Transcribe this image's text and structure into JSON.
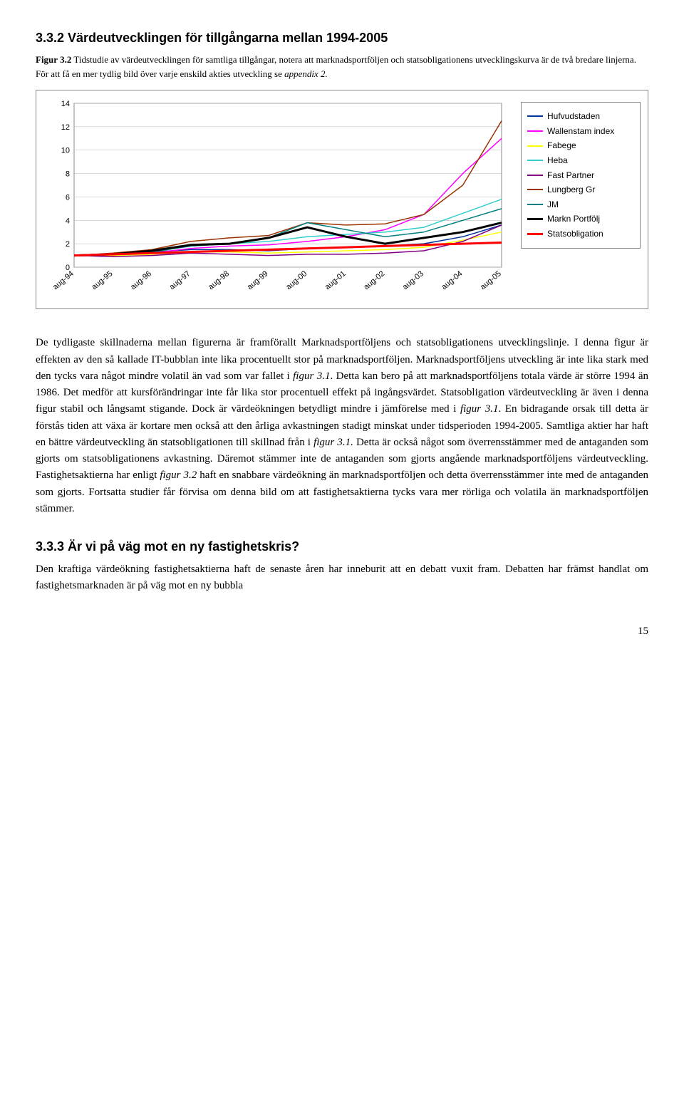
{
  "section_heading": "3.3.2 Värdeutvecklingen för tillgångarna mellan 1994-2005",
  "figcaption_bold": "Figur 3.2",
  "figcaption_rest": " Tidstudie av värdeutvecklingen för samtliga tillgångar, notera att marknadsportföljen och statsobligationens utvecklingskurva är de två bredare linjerna. För att få en mer tydlig bild över varje enskild akties utveckling se ",
  "figcaption_ital": "appendix 2.",
  "chart": {
    "type": "line",
    "ylim": [
      0,
      14
    ],
    "ytick_step": 2,
    "yticks": [
      0,
      2,
      4,
      6,
      8,
      10,
      12,
      14
    ],
    "xlabels": [
      "aug-94",
      "aug-95",
      "aug-96",
      "aug-97",
      "aug-98",
      "aug-99",
      "aug-00",
      "aug-01",
      "aug-02",
      "aug-03",
      "aug-04",
      "aug-05"
    ],
    "label_fontsize": 11,
    "tick_fontfamily": "Arial",
    "background_color": "#ffffff",
    "plot_border_color": "#888888",
    "grid_color": "#bfbfbf",
    "series": [
      {
        "name": "Hufvudstaden",
        "color": "#003399",
        "width": 1.5,
        "values": [
          1.0,
          1.1,
          1.3,
          1.5,
          1.5,
          1.4,
          1.6,
          1.7,
          1.8,
          2.0,
          2.6,
          3.6
        ]
      },
      {
        "name": "Wallenstam index",
        "color": "#ff00ff",
        "width": 1.5,
        "values": [
          1.0,
          1.0,
          1.2,
          1.6,
          1.8,
          1.9,
          2.2,
          2.6,
          3.2,
          4.5,
          8.0,
          11.0
        ]
      },
      {
        "name": "Fabege",
        "color": "#ffff00",
        "width": 1.5,
        "values": [
          1.0,
          1.0,
          1.1,
          1.3,
          1.3,
          1.2,
          1.3,
          1.4,
          1.5,
          1.7,
          2.3,
          3.0
        ]
      },
      {
        "name": "Heba",
        "color": "#33cccc",
        "width": 1.5,
        "values": [
          1.0,
          1.1,
          1.3,
          1.8,
          2.0,
          2.2,
          2.6,
          2.8,
          3.0,
          3.4,
          4.6,
          5.8
        ]
      },
      {
        "name": "Fast Partner",
        "color": "#800080",
        "width": 1.5,
        "values": [
          1.0,
          0.9,
          1.0,
          1.2,
          1.1,
          1.0,
          1.1,
          1.1,
          1.2,
          1.4,
          2.2,
          3.6
        ]
      },
      {
        "name": "Lungberg Gr",
        "color": "#993300",
        "width": 1.5,
        "values": [
          1.0,
          1.2,
          1.5,
          2.2,
          2.5,
          2.7,
          3.8,
          3.6,
          3.7,
          4.5,
          7.0,
          12.5
        ]
      },
      {
        "name": "JM",
        "color": "#008080",
        "width": 1.5,
        "values": [
          1.0,
          1.1,
          1.3,
          1.8,
          2.0,
          2.5,
          3.8,
          3.2,
          2.6,
          3.0,
          4.0,
          5.0
        ]
      },
      {
        "name": "Markn Portfölj",
        "color": "#000000",
        "width": 3.0,
        "values": [
          1.0,
          1.1,
          1.4,
          1.9,
          2.0,
          2.5,
          3.4,
          2.6,
          2.0,
          2.5,
          3.0,
          3.8
        ]
      },
      {
        "name": "Statsobligation",
        "color": "#ff0000",
        "width": 3.0,
        "values": [
          1.0,
          1.1,
          1.2,
          1.3,
          1.4,
          1.5,
          1.6,
          1.7,
          1.8,
          1.9,
          2.0,
          2.1
        ]
      }
    ]
  },
  "para1a": "De tydligaste skillnaderna mellan figurerna är framförallt Marknadsportföljens och statsobligationens utvecklingslinje. I denna figur är effekten av den så kallade IT-bubblan inte lika procentuellt stor på marknadsportföljen. Marknadsportföljens utveckling är inte lika stark med den tycks vara något mindre volatil än vad som var fallet i ",
  "para1_it1": "figur 3.1",
  "para1b": ". Detta kan bero på att marknadsportföljens totala värde är större 1994 än 1986. Det medför att kursförändringar inte får lika stor procentuell effekt på ingångsvärdet. Statsobligation värdeutveckling är även i denna figur stabil och långsamt stigande. Dock är värdeökningen betydligt mindre i jämförelse med i ",
  "para1_it2": "figur 3.1",
  "para1c": ". En bidragande orsak till detta är förstås tiden att växa är kortare men också att den årliga avkastningen stadigt minskat under tidsperioden 1994-2005. Samtliga aktier har haft en bättre värdeutveckling än statsobligationen till skillnad från i ",
  "para1_it3": "figur 3.1.",
  "para1d": " Detta är också något som överrensstämmer med de antaganden som gjorts om statsobligationens avkastning. Däremot stämmer inte de antaganden som gjorts angående marknadsportföljens värdeutveckling. Fastighetsaktierna har enligt ",
  "para1_it4": "figur 3.2",
  "para1e": " haft en snabbare värdeökning än marknadsportföljen och detta överrensstämmer inte med de antaganden som gjorts. Fortsatta studier får förvisa om denna bild om att fastighetsaktierna tycks vara mer rörliga och volatila än marknadsportföljen stämmer.",
  "subsection_heading": "3.3.3 Är vi på väg mot en ny fastighetskris?",
  "para2": "Den kraftiga värdeökning fastighetsaktierna haft de senaste åren har inneburit att en debatt vuxit fram. Debatten har främst handlat om fastighetsmarknaden är på väg mot en ny bubbla",
  "page_number": "15"
}
